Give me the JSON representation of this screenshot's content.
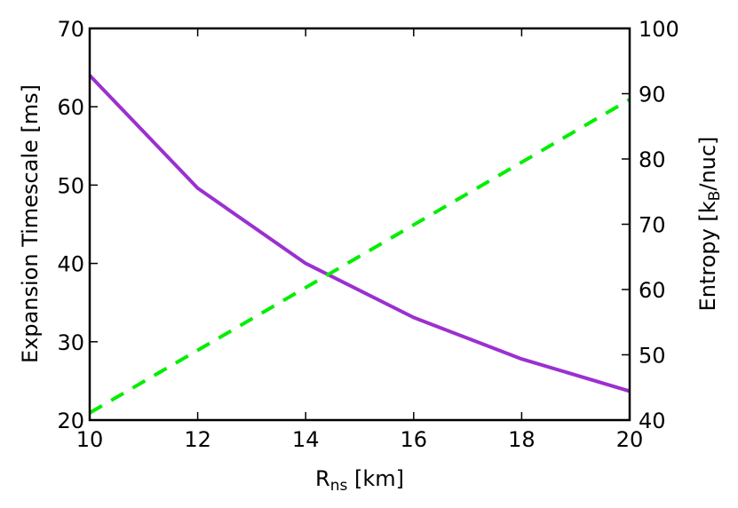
{
  "chart_data": {
    "type": "line",
    "title": "",
    "xlabel": "R_ns [km]",
    "xlabel_main": "R",
    "xlabel_sub": "ns",
    "xlabel_rest": " [km]",
    "ylabel": "Expansion Timescale [ms]",
    "ylabel_right": "Entropy [k_B/nuc]",
    "ylabel_right_pre": "Entropy [k",
    "ylabel_right_sub": "B",
    "ylabel_right_post": "/nuc]",
    "xlim": [
      10,
      20
    ],
    "ylim": [
      20,
      70
    ],
    "ylim_right": [
      40,
      100
    ],
    "x_ticks": [
      10,
      12,
      14,
      16,
      18,
      20
    ],
    "y_ticks": [
      20,
      30,
      40,
      50,
      60,
      70
    ],
    "y_ticks_right": [
      40,
      50,
      60,
      70,
      80,
      90,
      100
    ],
    "grid": false,
    "legend": null,
    "x": [
      10,
      12,
      14,
      16,
      18,
      20
    ],
    "series": [
      {
        "name": "Expansion Timescale",
        "axis": "left",
        "style": "solid",
        "color": "#9b30d0",
        "values": [
          64.0,
          49.6,
          40.0,
          33.1,
          27.8,
          23.7
        ]
      },
      {
        "name": "Entropy",
        "axis": "right",
        "style": "dashed",
        "color": "#00ee00",
        "values": [
          41.1,
          50.7,
          60.3,
          69.9,
          79.5,
          89.1
        ]
      }
    ]
  }
}
